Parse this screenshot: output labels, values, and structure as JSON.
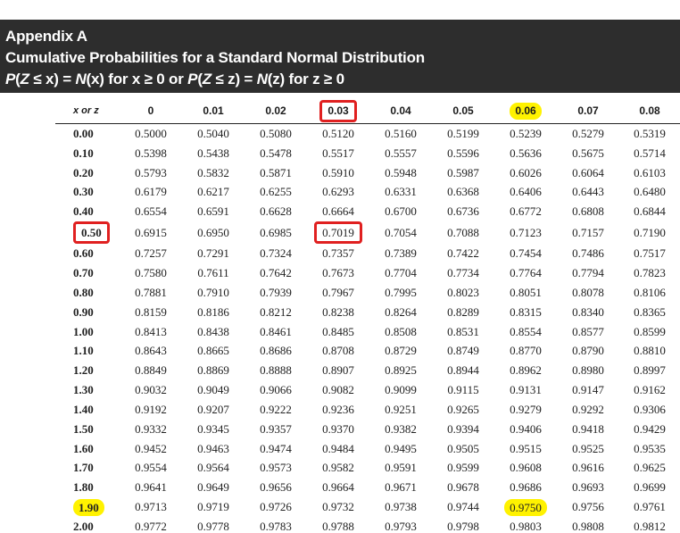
{
  "header": {
    "line1": "Appendix A",
    "line2": "Cumulative Probabilities for a Standard Normal Distribution",
    "line3": "P(Z ≤ x) = N(x) for x ≥ 0 or P(Z ≤ z) = N(z) for z ≥ 0"
  },
  "table": {
    "first_header": "x or z",
    "columns": [
      "0",
      "0.01",
      "0.02",
      "0.03",
      "0.04",
      "0.05",
      "0.06",
      "0.07",
      "0.08"
    ],
    "rows": [
      {
        "z": "0.00",
        "values": [
          "0.5000",
          "0.5040",
          "0.5080",
          "0.5120",
          "0.5160",
          "0.5199",
          "0.5239",
          "0.5279",
          "0.5319"
        ]
      },
      {
        "z": "0.10",
        "values": [
          "0.5398",
          "0.5438",
          "0.5478",
          "0.5517",
          "0.5557",
          "0.5596",
          "0.5636",
          "0.5675",
          "0.5714"
        ]
      },
      {
        "z": "0.20",
        "values": [
          "0.5793",
          "0.5832",
          "0.5871",
          "0.5910",
          "0.5948",
          "0.5987",
          "0.6026",
          "0.6064",
          "0.6103"
        ]
      },
      {
        "z": "0.30",
        "values": [
          "0.6179",
          "0.6217",
          "0.6255",
          "0.6293",
          "0.6331",
          "0.6368",
          "0.6406",
          "0.6443",
          "0.6480"
        ]
      },
      {
        "z": "0.40",
        "values": [
          "0.6554",
          "0.6591",
          "0.6628",
          "0.6664",
          "0.6700",
          "0.6736",
          "0.6772",
          "0.6808",
          "0.6844"
        ]
      },
      {
        "z": "0.50",
        "values": [
          "0.6915",
          "0.6950",
          "0.6985",
          "0.7019",
          "0.7054",
          "0.7088",
          "0.7123",
          "0.7157",
          "0.7190"
        ]
      },
      {
        "z": "0.60",
        "values": [
          "0.7257",
          "0.7291",
          "0.7324",
          "0.7357",
          "0.7389",
          "0.7422",
          "0.7454",
          "0.7486",
          "0.7517"
        ]
      },
      {
        "z": "0.70",
        "values": [
          "0.7580",
          "0.7611",
          "0.7642",
          "0.7673",
          "0.7704",
          "0.7734",
          "0.7764",
          "0.7794",
          "0.7823"
        ]
      },
      {
        "z": "0.80",
        "values": [
          "0.7881",
          "0.7910",
          "0.7939",
          "0.7967",
          "0.7995",
          "0.8023",
          "0.8051",
          "0.8078",
          "0.8106"
        ]
      },
      {
        "z": "0.90",
        "values": [
          "0.8159",
          "0.8186",
          "0.8212",
          "0.8238",
          "0.8264",
          "0.8289",
          "0.8315",
          "0.8340",
          "0.8365"
        ]
      },
      {
        "z": "1.00",
        "values": [
          "0.8413",
          "0.8438",
          "0.8461",
          "0.8485",
          "0.8508",
          "0.8531",
          "0.8554",
          "0.8577",
          "0.8599"
        ]
      },
      {
        "z": "1.10",
        "values": [
          "0.8643",
          "0.8665",
          "0.8686",
          "0.8708",
          "0.8729",
          "0.8749",
          "0.8770",
          "0.8790",
          "0.8810"
        ]
      },
      {
        "z": "1.20",
        "values": [
          "0.8849",
          "0.8869",
          "0.8888",
          "0.8907",
          "0.8925",
          "0.8944",
          "0.8962",
          "0.8980",
          "0.8997"
        ]
      },
      {
        "z": "1.30",
        "values": [
          "0.9032",
          "0.9049",
          "0.9066",
          "0.9082",
          "0.9099",
          "0.9115",
          "0.9131",
          "0.9147",
          "0.9162"
        ]
      },
      {
        "z": "1.40",
        "values": [
          "0.9192",
          "0.9207",
          "0.9222",
          "0.9236",
          "0.9251",
          "0.9265",
          "0.9279",
          "0.9292",
          "0.9306"
        ]
      },
      {
        "z": "1.50",
        "values": [
          "0.9332",
          "0.9345",
          "0.9357",
          "0.9370",
          "0.9382",
          "0.9394",
          "0.9406",
          "0.9418",
          "0.9429"
        ]
      },
      {
        "z": "1.60",
        "values": [
          "0.9452",
          "0.9463",
          "0.9474",
          "0.9484",
          "0.9495",
          "0.9505",
          "0.9515",
          "0.9525",
          "0.9535"
        ]
      },
      {
        "z": "1.70",
        "values": [
          "0.9554",
          "0.9564",
          "0.9573",
          "0.9582",
          "0.9591",
          "0.9599",
          "0.9608",
          "0.9616",
          "0.9625"
        ]
      },
      {
        "z": "1.80",
        "values": [
          "0.9641",
          "0.9649",
          "0.9656",
          "0.9664",
          "0.9671",
          "0.9678",
          "0.9686",
          "0.9693",
          "0.9699"
        ]
      },
      {
        "z": "1.90",
        "values": [
          "0.9713",
          "0.9719",
          "0.9726",
          "0.9732",
          "0.9738",
          "0.9744",
          "0.9750",
          "0.9756",
          "0.9761"
        ]
      },
      {
        "z": "2.00",
        "values": [
          "0.9772",
          "0.9778",
          "0.9783",
          "0.9788",
          "0.9793",
          "0.9798",
          "0.9803",
          "0.9808",
          "0.9812"
        ]
      }
    ]
  },
  "highlights": {
    "red_color": "#e02020",
    "yellow_color": "#fff200",
    "red_boxed": [
      {
        "row": "header",
        "col": "0.03"
      },
      {
        "row": "0.50",
        "col": "z"
      },
      {
        "row": "0.50",
        "col": "0.03"
      }
    ],
    "yellow_marked": [
      {
        "row": "header",
        "col": "0.06"
      },
      {
        "row": "1.90",
        "col": "z"
      },
      {
        "row": "1.90",
        "col": "0.06"
      }
    ]
  }
}
